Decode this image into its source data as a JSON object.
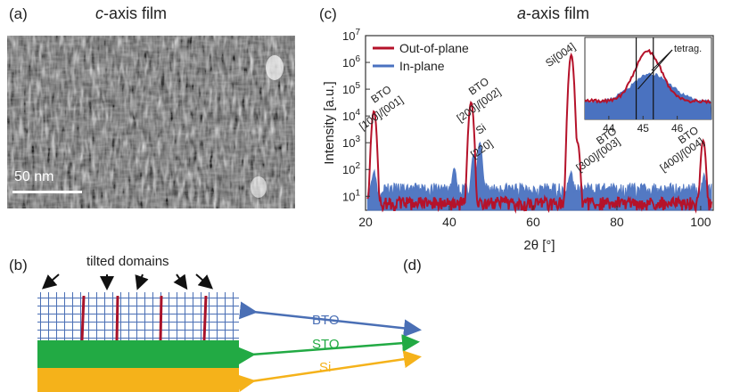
{
  "panel_a": {
    "label": "(a)",
    "title_em": "c",
    "title_rest": "-axis film",
    "scale_label": "50 nm"
  },
  "panel_b": {
    "label": "(b)",
    "arrow_label": "tilted domains",
    "layers": [
      {
        "name": "BTO",
        "color": "#4a6fb5"
      },
      {
        "name": "STO",
        "color": "#22aa44"
      },
      {
        "name": "Si",
        "color": "#f5b21a"
      }
    ]
  },
  "panel_c": {
    "label": "(c)",
    "title_em": "a",
    "title_rest": "-axis film"
  },
  "panel_d": {
    "label": "(d)"
  },
  "chart_data": {
    "type": "line",
    "xlabel": "2θ [°]",
    "ylabel": "Intensity [a.u.]",
    "xlim": [
      20,
      103
    ],
    "ylim": [
      3,
      10000000
    ],
    "yscale": "log",
    "xticks": [
      20,
      40,
      60,
      80,
      100
    ],
    "yticks": [
      "10^1",
      "10^2",
      "10^3",
      "10^4",
      "10^5",
      "10^6",
      "10^7"
    ],
    "legend_position": "top-left",
    "series": [
      {
        "name": "Out-of-plane",
        "color": "#b5122a",
        "peaks": [
          [
            22.0,
            15000
          ],
          [
            45.2,
            32000
          ],
          [
            69.1,
            1900000
          ],
          [
            70.6,
            1000
          ],
          [
            100.6,
            1200
          ]
        ],
        "baseline": 6
      },
      {
        "name": "In-plane",
        "color": "#4a72c0",
        "peaks": [
          [
            22.0,
            70
          ],
          [
            41.2,
            90
          ],
          [
            45.8,
            350
          ],
          [
            47.3,
            1000
          ],
          [
            69.0,
            60
          ],
          [
            100.8,
            40
          ]
        ],
        "baseline": 20
      }
    ],
    "annotations": [
      {
        "text": "BTO",
        "x": 24.2,
        "y": 50000
      },
      {
        "text": "[100]/[001]",
        "x": 24.2,
        "y": 10000
      },
      {
        "text": "BTO",
        "x": 47.5,
        "y": 100000
      },
      {
        "text": "[200]/[002]",
        "x": 47.5,
        "y": 20000
      },
      {
        "text": "Si",
        "x": 48.0,
        "y": 2500
      },
      {
        "text": "[220]",
        "x": 48.2,
        "y": 450
      },
      {
        "text": "Si[004]",
        "x": 67.0,
        "y": 1500000
      },
      {
        "text": "BTO",
        "x": 78.0,
        "y": 1400
      },
      {
        "text": "[300]/[003]",
        "x": 76.0,
        "y": 280
      },
      {
        "text": "BTO",
        "x": 97.5,
        "y": 1500
      },
      {
        "text": "[400]/[004]",
        "x": 96.0,
        "y": 280
      }
    ],
    "inset": {
      "xlim": [
        43.3,
        47.0
      ],
      "xticks": [
        44,
        45,
        46
      ],
      "vlines": [
        44.8,
        45.3
      ],
      "annotation": "tetrag."
    }
  }
}
